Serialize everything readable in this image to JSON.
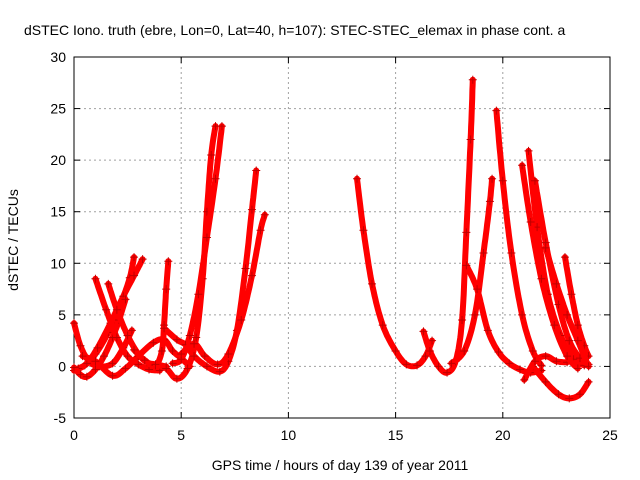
{
  "chart_data": {
    "type": "scatter",
    "title": "dSTEC Iono. truth (ebre, Lon=0, Lat=40, h=107): STEC-STEC_elemax in phase cont. a",
    "xlabel": "GPS time / hours of day 139 of year 2011",
    "ylabel": "dSTEC  / TECUs",
    "xlim": [
      0,
      25
    ],
    "ylim": [
      -5,
      30
    ],
    "xticks": [
      "0",
      "5",
      "10",
      "15",
      "20",
      "25"
    ],
    "yticks": [
      "-5",
      "0",
      "5",
      "10",
      "15",
      "20",
      "25",
      "30"
    ],
    "grid": true,
    "marker": "+",
    "color": "#ff0000",
    "series": [
      {
        "points": [
          [
            0.0,
            4.2
          ],
          [
            0.3,
            2.0
          ],
          [
            0.7,
            0.5
          ],
          [
            1.2,
            0.0
          ],
          [
            1.8,
            0.3
          ],
          [
            2.3,
            1.8
          ],
          [
            2.7,
            3.5
          ]
        ]
      },
      {
        "points": [
          [
            0.0,
            -0.4
          ],
          [
            0.5,
            0.1
          ],
          [
            1.0,
            1.2
          ],
          [
            1.6,
            3.3
          ],
          [
            2.2,
            6.2
          ],
          [
            2.6,
            8.6
          ],
          [
            2.8,
            10.6
          ]
        ]
      },
      {
        "points": [
          [
            0.2,
            -0.2
          ],
          [
            0.6,
            0.3
          ],
          [
            1.1,
            1.8
          ],
          [
            1.7,
            4.2
          ],
          [
            2.3,
            6.8
          ],
          [
            2.8,
            8.8
          ],
          [
            3.2,
            10.4
          ]
        ]
      },
      {
        "points": [
          [
            0.0,
            -0.1
          ],
          [
            0.3,
            -0.8
          ],
          [
            0.6,
            -1.0
          ],
          [
            1.0,
            -0.3
          ],
          [
            1.4,
            1.0
          ],
          [
            1.8,
            2.8
          ],
          [
            2.1,
            4.5
          ],
          [
            2.4,
            6.5
          ]
        ]
      },
      {
        "points": [
          [
            1.0,
            8.5
          ],
          [
            1.5,
            5.5
          ],
          [
            2.0,
            2.8
          ],
          [
            2.5,
            1.0
          ],
          [
            3.0,
            0.2
          ],
          [
            3.5,
            -0.3
          ],
          [
            4.0,
            -0.4
          ]
        ]
      },
      {
        "points": [
          [
            1.6,
            8.0
          ],
          [
            2.0,
            5.5
          ],
          [
            2.5,
            3.0
          ],
          [
            3.0,
            1.2
          ],
          [
            3.4,
            0.4
          ],
          [
            3.8,
            0.2
          ],
          [
            4.3,
            0.0
          ]
        ]
      },
      {
        "points": [
          [
            0.4,
            1.0
          ],
          [
            1.0,
            0.5
          ],
          [
            1.8,
            -0.9
          ],
          [
            2.4,
            -0.2
          ],
          [
            3.0,
            1.0
          ],
          [
            3.7,
            2.3
          ],
          [
            4.2,
            2.6
          ],
          [
            4.6,
            1.5
          ],
          [
            5.0,
            0.8
          ],
          [
            5.4,
            0.0
          ]
        ]
      },
      {
        "points": [
          [
            2.8,
            1.6
          ],
          [
            3.3,
            0.6
          ],
          [
            3.8,
            0.1
          ],
          [
            4.1,
            1.5
          ],
          [
            4.2,
            4.0
          ],
          [
            4.3,
            7.5
          ],
          [
            4.4,
            10.2
          ]
        ]
      },
      {
        "points": [
          [
            3.8,
            0.2
          ],
          [
            4.3,
            -0.2
          ],
          [
            4.8,
            -1.2
          ],
          [
            5.3,
            -0.2
          ],
          [
            5.7,
            2.8
          ],
          [
            6.0,
            8.5
          ],
          [
            6.2,
            15.0
          ],
          [
            6.4,
            20.5
          ],
          [
            6.6,
            23.3
          ]
        ]
      },
      {
        "points": [
          [
            4.6,
            0.3
          ],
          [
            5.0,
            0.7
          ],
          [
            5.4,
            3.0
          ],
          [
            5.8,
            7.0
          ],
          [
            6.2,
            12.5
          ],
          [
            6.6,
            18.2
          ],
          [
            6.9,
            23.3
          ]
        ]
      },
      {
        "points": [
          [
            4.2,
            3.7
          ],
          [
            4.8,
            2.6
          ],
          [
            5.2,
            2.1
          ],
          [
            5.6,
            1.0
          ],
          [
            6.2,
            0.0
          ],
          [
            6.8,
            -0.5
          ],
          [
            7.2,
            0.5
          ],
          [
            7.6,
            3.5
          ],
          [
            8.0,
            9.5
          ],
          [
            8.3,
            15.2
          ],
          [
            8.5,
            19.0
          ]
        ]
      },
      {
        "points": [
          [
            5.0,
            1.2
          ],
          [
            5.6,
            2.2
          ],
          [
            6.1,
            1.0
          ],
          [
            6.7,
            0.2
          ],
          [
            7.2,
            1.2
          ],
          [
            7.8,
            4.5
          ],
          [
            8.3,
            8.8
          ],
          [
            8.7,
            13.2
          ],
          [
            8.9,
            14.7
          ]
        ]
      },
      {
        "points": [
          [
            13.2,
            18.2
          ],
          [
            13.5,
            13.2
          ],
          [
            13.9,
            8.0
          ],
          [
            14.4,
            4.0
          ],
          [
            15.0,
            1.5
          ],
          [
            15.5,
            0.2
          ],
          [
            16.0,
            0.1
          ],
          [
            16.4,
            1.0
          ],
          [
            16.7,
            2.5
          ]
        ]
      },
      {
        "points": [
          [
            16.3,
            3.4
          ],
          [
            16.6,
            1.5
          ],
          [
            17.0,
            0.0
          ],
          [
            17.4,
            -0.6
          ],
          [
            17.8,
            0.5
          ],
          [
            18.1,
            4.5
          ],
          [
            18.3,
            13.0
          ],
          [
            18.5,
            22.0
          ],
          [
            18.6,
            27.8
          ]
        ]
      },
      {
        "points": [
          [
            17.6,
            0.3
          ],
          [
            18.2,
            1.5
          ],
          [
            18.7,
            5.0
          ],
          [
            19.1,
            11.0
          ],
          [
            19.4,
            16.0
          ],
          [
            19.5,
            18.2
          ]
        ]
      },
      {
        "points": [
          [
            18.3,
            9.8
          ],
          [
            18.8,
            7.5
          ],
          [
            19.3,
            3.5
          ],
          [
            19.8,
            1.4
          ],
          [
            20.3,
            0.3
          ],
          [
            20.8,
            -0.3
          ],
          [
            21.3,
            -0.6
          ],
          [
            21.8,
            -0.4
          ]
        ]
      },
      {
        "points": [
          [
            19.7,
            24.8
          ],
          [
            20.0,
            18.0
          ],
          [
            20.4,
            11.0
          ],
          [
            20.9,
            5.0
          ],
          [
            21.4,
            1.5
          ],
          [
            21.8,
            0.1
          ]
        ]
      },
      {
        "points": [
          [
            21.4,
            0.0
          ],
          [
            22.0,
            -1.5
          ],
          [
            22.6,
            -2.7
          ],
          [
            23.1,
            -3.1
          ],
          [
            23.6,
            -2.7
          ],
          [
            24.0,
            -1.5
          ]
        ]
      },
      {
        "points": [
          [
            21.0,
            -1.3
          ],
          [
            21.5,
            0.5
          ],
          [
            22.0,
            1.0
          ],
          [
            22.5,
            0.5
          ],
          [
            23.0,
            0.4
          ]
        ]
      },
      {
        "points": [
          [
            21.2,
            20.9
          ],
          [
            21.6,
            13.5
          ],
          [
            22.1,
            7.0
          ],
          [
            22.7,
            3.0
          ],
          [
            23.3,
            0.7
          ],
          [
            23.8,
            0.1
          ]
        ]
      },
      {
        "points": [
          [
            20.9,
            19.5
          ],
          [
            21.3,
            14.0
          ],
          [
            21.8,
            8.5
          ],
          [
            22.4,
            4.0
          ],
          [
            23.0,
            1.0
          ],
          [
            23.5,
            -0.2
          ]
        ]
      },
      {
        "points": [
          [
            21.5,
            18.0
          ],
          [
            22.0,
            12.0
          ],
          [
            22.6,
            6.0
          ],
          [
            23.1,
            2.5
          ],
          [
            23.6,
            0.8
          ],
          [
            24.0,
            0.2
          ]
        ]
      },
      {
        "points": [
          [
            22.9,
            10.6
          ],
          [
            23.2,
            7.0
          ],
          [
            23.5,
            4.0
          ],
          [
            23.8,
            2.0
          ],
          [
            24.0,
            1.0
          ]
        ]
      },
      {
        "points": [
          [
            22.0,
            11.5
          ],
          [
            22.5,
            8.0
          ],
          [
            23.0,
            5.0
          ],
          [
            23.5,
            2.5
          ],
          [
            24.0,
            0.0
          ]
        ]
      }
    ]
  }
}
